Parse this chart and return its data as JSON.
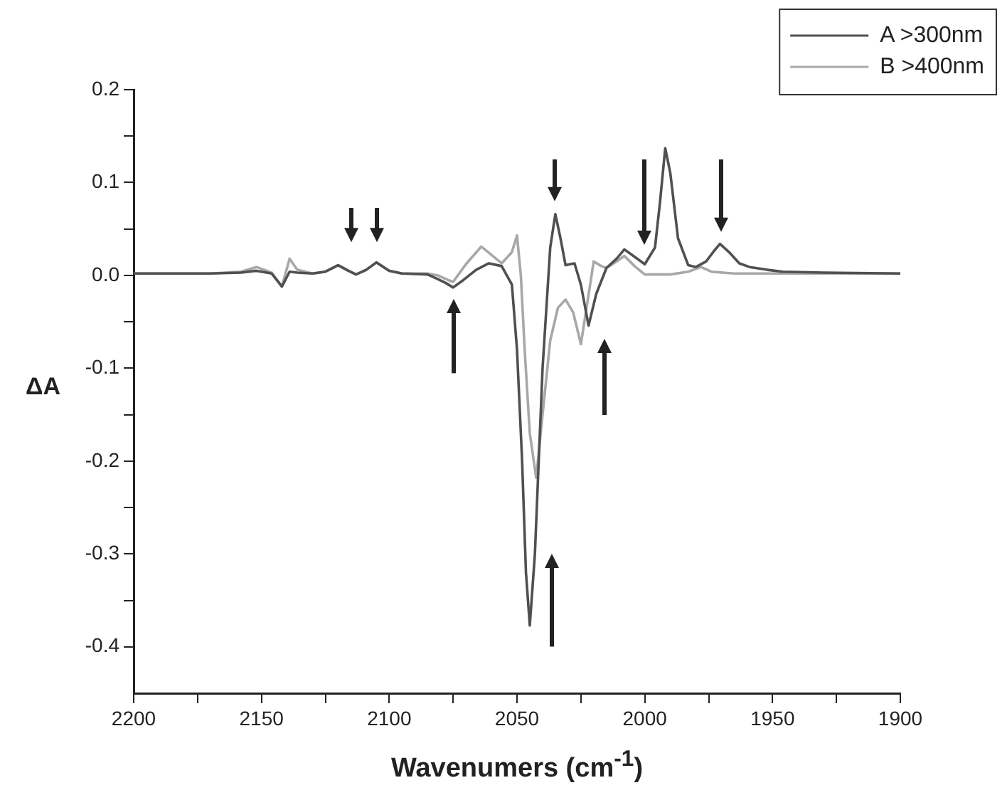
{
  "chart_data": {
    "type": "line",
    "xlabel": "Wavenumers (cm$^{-1}$)",
    "ylabel": "ΔA",
    "xlim": [
      2200,
      1900
    ],
    "xticks": [
      2200,
      {
        "value": 2175,
        "label": null
      },
      2150,
      {
        "value": 2125,
        "label": null
      },
      2100,
      {
        "value": 2075,
        "label": null
      },
      2050,
      {
        "value": 2025,
        "label": null
      },
      2000,
      {
        "value": 1975,
        "label": null
      },
      1950,
      {
        "value": 1925,
        "label": null
      },
      1900
    ],
    "ylim": [
      -0.45,
      0.2
    ],
    "yticks": [
      {
        "value": 0.2,
        "label": "0.2"
      },
      {
        "value": 0.15,
        "label": null
      },
      {
        "value": 0.1,
        "label": "0.1"
      },
      {
        "value": 0.05,
        "label": null
      },
      {
        "value": 0,
        "label": "0.0"
      },
      {
        "value": -0.05,
        "label": null
      },
      {
        "value": -0.1,
        "label": "-0.1"
      },
      {
        "value": -0.15,
        "label": null
      },
      {
        "value": -0.2,
        "label": "-0.2"
      },
      {
        "value": -0.25,
        "label": null
      },
      {
        "value": -0.3,
        "label": "-0.3"
      },
      {
        "value": -0.35,
        "label": null
      },
      {
        "value": -0.4,
        "label": "-0.4"
      }
    ],
    "grid": false,
    "legend": "top right",
    "marker": "none",
    "line_style": "solid",
    "series": [
      {
        "name": "A >300nm",
        "color": "#505050",
        "x": [
          2200,
          2170,
          2158,
          2152,
          2146,
          2142,
          2139,
          2136,
          2130,
          2125,
          2120,
          2116,
          2113,
          2109,
          2105,
          2100,
          2095,
          2085,
          2081,
          2078,
          2075,
          2071,
          2066,
          2061,
          2056,
          2052,
          2050,
          2048,
          2046.5,
          2045,
          2043,
          2040,
          2037,
          2035,
          2033,
          2031,
          2027.5,
          2025,
          2022,
          2019,
          2015,
          2011,
          2008,
          2004,
          2000,
          1996,
          1994,
          1992,
          1990,
          1987,
          1983,
          1980,
          1976,
          1973,
          1970.6,
          1967,
          1963,
          1959,
          1952,
          1946,
          1930,
          1900
        ],
        "values": [
          0.002,
          0.002,
          0.003,
          0.005,
          0.002,
          -0.012,
          0.004,
          0.003,
          0.002,
          0.004,
          0.011,
          0.005,
          0.001,
          0.006,
          0.014,
          0.005,
          0.002,
          0.001,
          -0.004,
          -0.008,
          -0.013,
          -0.005,
          0.006,
          0.013,
          0.01,
          -0.01,
          -0.08,
          -0.2,
          -0.32,
          -0.377,
          -0.3,
          -0.1,
          0.03,
          0.066,
          0.04,
          0.011,
          0.013,
          -0.01,
          -0.054,
          -0.02,
          0.008,
          0.018,
          0.028,
          0.02,
          0.012,
          0.03,
          0.08,
          0.137,
          0.11,
          0.04,
          0.011,
          0.009,
          0.015,
          0.026,
          0.034,
          0.025,
          0.013,
          0.009,
          0.006,
          0.004,
          0.003,
          0.002
        ]
      },
      {
        "name": "B >400nm",
        "color": "#a8a8a8",
        "x": [
          2200,
          2170,
          2158,
          2152,
          2146,
          2142,
          2139,
          2136,
          2130,
          2125,
          2120,
          2116,
          2113,
          2109,
          2105,
          2100,
          2095,
          2085,
          2081,
          2077,
          2075,
          2070,
          2064,
          2060,
          2056,
          2052,
          2050,
          2048.5,
          2047,
          2045,
          2042.5,
          2040,
          2037,
          2034,
          2031,
          2028,
          2025,
          2022.5,
          2020,
          2017,
          2015,
          2011,
          2008,
          2004,
          2000,
          1990,
          1983,
          1978,
          1974,
          1965,
          1930,
          1900
        ],
        "values": [
          0.002,
          0.002,
          0.004,
          0.009,
          0.003,
          -0.012,
          0.018,
          0.006,
          0.002,
          0.004,
          0.011,
          0.005,
          0.001,
          0.006,
          0.014,
          0.005,
          0.002,
          0.002,
          0.0,
          -0.005,
          -0.007,
          0.012,
          0.031,
          0.022,
          0.013,
          0.025,
          0.043,
          0.0,
          -0.08,
          -0.17,
          -0.218,
          -0.15,
          -0.07,
          -0.035,
          -0.026,
          -0.04,
          -0.074,
          -0.03,
          0.015,
          0.01,
          0.008,
          0.015,
          0.021,
          0.01,
          0.001,
          0.001,
          0.004,
          0.009,
          0.004,
          0.002,
          0.002,
          0.002
        ]
      }
    ]
  }
}
